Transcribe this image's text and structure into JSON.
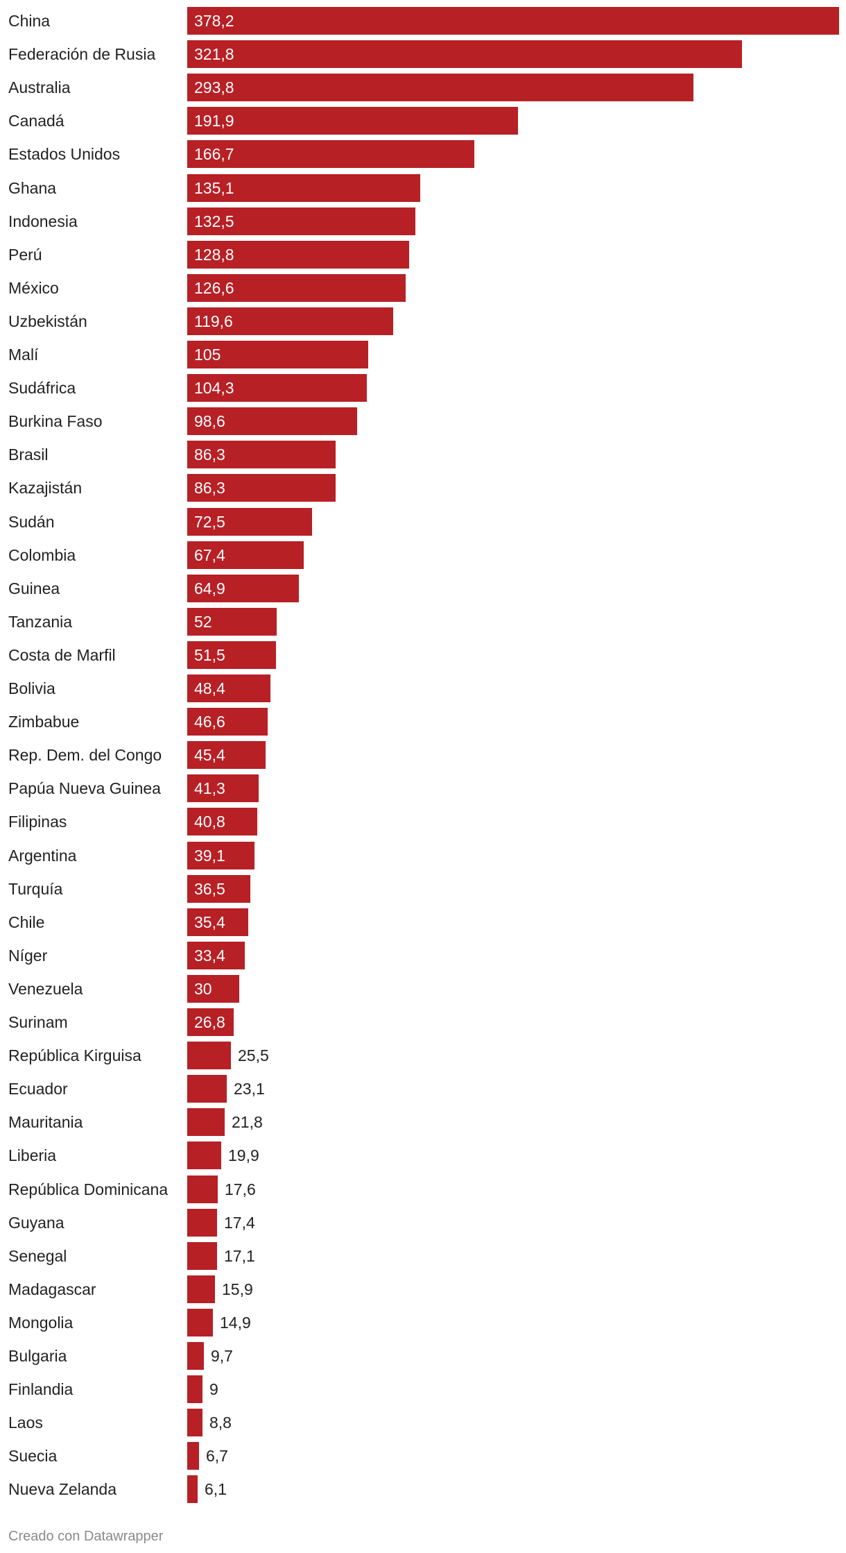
{
  "chart_data": {
    "type": "bar",
    "orientation": "horizontal",
    "categories": [
      "China",
      "Federación de Rusia",
      "Australia",
      "Canadá",
      "Estados Unidos",
      "Ghana",
      "Indonesia",
      "Perú",
      "México",
      "Uzbekistán",
      "Malí",
      "Sudáfrica",
      "Burkina Faso",
      "Brasil",
      "Kazajistán",
      "Sudán",
      "Colombia",
      "Guinea",
      "Tanzania",
      "Costa de Marfil",
      "Bolivia",
      "Zimbabue",
      "Rep. Dem. del Congo",
      "Papúa Nueva Guinea",
      "Filipinas",
      "Argentina",
      "Turquía",
      "Chile",
      "Níger",
      "Venezuela",
      "Surinam",
      "República Kirguisa",
      "Ecuador",
      "Mauritania",
      "Liberia",
      "República Dominicana",
      "Guyana",
      "Senegal",
      "Madagascar",
      "Mongolia",
      "Bulgaria",
      "Finlandia",
      "Laos",
      "Suecia",
      "Nueva Zelanda"
    ],
    "values": [
      378.2,
      321.8,
      293.8,
      191.9,
      166.7,
      135.1,
      132.5,
      128.8,
      126.6,
      119.6,
      105,
      104.3,
      98.6,
      86.3,
      86.3,
      72.5,
      67.4,
      64.9,
      52,
      51.5,
      48.4,
      46.6,
      45.4,
      41.3,
      40.8,
      39.1,
      36.5,
      35.4,
      33.4,
      30,
      26.8,
      25.5,
      23.1,
      21.8,
      19.9,
      17.6,
      17.4,
      17.1,
      15.9,
      14.9,
      9.7,
      9,
      8.8,
      6.7,
      6.1
    ],
    "value_labels": [
      "378,2",
      "321,8",
      "293,8",
      "191,9",
      "166,7",
      "135,1",
      "132,5",
      "128,8",
      "126,6",
      "119,6",
      "105",
      "104,3",
      "98,6",
      "86,3",
      "86,3",
      "72,5",
      "67,4",
      "64,9",
      "52",
      "51,5",
      "48,4",
      "46,6",
      "45,4",
      "41,3",
      "40,8",
      "39,1",
      "36,5",
      "35,4",
      "33,4",
      "30",
      "26,8",
      "25,5",
      "23,1",
      "21,8",
      "19,9",
      "17,6",
      "17,4",
      "17,1",
      "15,9",
      "14,9",
      "9,7",
      "9",
      "8,8",
      "6,7",
      "6,1"
    ],
    "xlim": [
      0,
      378.2
    ],
    "bar_color": "#b72025",
    "grid": false,
    "legend": "none"
  },
  "footer": {
    "credit": "Creado con Datawrapper"
  }
}
